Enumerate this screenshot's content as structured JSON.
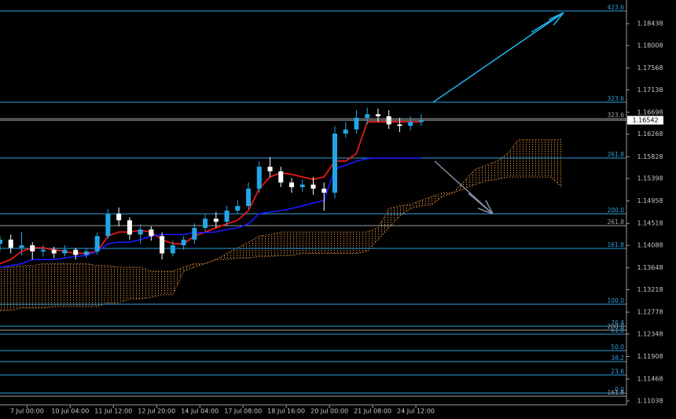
{
  "chart_data": {
    "type": "candlestick",
    "ylim": [
      1.1096,
      1.189
    ],
    "yticks": [
      1.18438,
      1.18008,
      1.17568,
      1.17138,
      1.16698,
      1.16268,
      1.15828,
      1.15398,
      1.14958,
      1.14518,
      1.14088,
      1.13648,
      1.13218,
      1.12778,
      1.12348,
      1.11908,
      1.11468,
      1.11038
    ],
    "xlim": [
      0,
      58
    ],
    "xticks": [
      {
        "value": 2.5,
        "label": "7 Jul 00:00"
      },
      {
        "value": 6.5,
        "label": "10 Jul 04:00"
      },
      {
        "value": 10.5,
        "label": "11 Jul 12:00"
      },
      {
        "value": 14.5,
        "label": "12 Jul 20:00"
      },
      {
        "value": 18.5,
        "label": "14 Jul 04:00"
      },
      {
        "value": 22.5,
        "label": "17 Jul 08:00"
      },
      {
        "value": 26.5,
        "label": "18 Jul 16:00"
      },
      {
        "value": 30.5,
        "label": "20 Jul 00:00"
      },
      {
        "value": 34.5,
        "label": "21 Jul 08:00"
      },
      {
        "value": 38.5,
        "label": "24 Jul 12:00"
      }
    ],
    "up_color": "#22a6e6",
    "down_color": "#ffffff",
    "open": [
      1.1412,
      1.142,
      1.1404,
      1.1409,
      1.1397,
      1.14,
      1.1393,
      1.14,
      1.139,
      1.1397,
      1.1427,
      1.1471,
      1.1458,
      1.143,
      1.144,
      1.1427,
      1.1393,
      1.1409,
      1.142,
      1.1443,
      1.1461,
      1.1455,
      1.1477,
      1.1486,
      1.152,
      1.1563,
      1.1554,
      1.1532,
      1.1523,
      1.1528,
      1.152,
      1.1512,
      1.1628,
      1.1636,
      1.1659,
      1.1666,
      1.1662,
      1.1646,
      1.1643,
      1.1651
    ],
    "high": [
      1.1427,
      1.143,
      1.1435,
      1.1415,
      1.1409,
      1.1406,
      1.1409,
      1.1404,
      1.1403,
      1.1434,
      1.148,
      1.1483,
      1.1464,
      1.1451,
      1.1446,
      1.1434,
      1.1418,
      1.1427,
      1.1452,
      1.1471,
      1.1474,
      1.1486,
      1.1497,
      1.1532,
      1.1574,
      1.1582,
      1.1563,
      1.1541,
      1.1538,
      1.1543,
      1.1532,
      1.1643,
      1.1651,
      1.1674,
      1.1679,
      1.1677,
      1.1674,
      1.1659,
      1.1662,
      1.1666
    ],
    "low": [
      1.1397,
      1.1393,
      1.1389,
      1.1381,
      1.1387,
      1.1384,
      1.1387,
      1.1381,
      1.1384,
      1.139,
      1.1421,
      1.1446,
      1.142,
      1.1412,
      1.1418,
      1.1381,
      1.1387,
      1.14,
      1.1412,
      1.1437,
      1.1443,
      1.1446,
      1.1471,
      1.148,
      1.1512,
      1.1543,
      1.1523,
      1.1512,
      1.1514,
      1.1508,
      1.1477,
      1.1501,
      1.162,
      1.1628,
      1.1646,
      1.1651,
      1.1637,
      1.1631,
      1.1634,
      1.1643
    ],
    "close": [
      1.142,
      1.1404,
      1.1409,
      1.1397,
      1.14,
      1.1393,
      1.14,
      1.139,
      1.1397,
      1.1427,
      1.1471,
      1.1458,
      1.143,
      1.144,
      1.1427,
      1.1393,
      1.1409,
      1.142,
      1.1443,
      1.1461,
      1.1455,
      1.1477,
      1.1486,
      1.152,
      1.1563,
      1.1554,
      1.1532,
      1.1523,
      1.1528,
      1.152,
      1.1512,
      1.1628,
      1.1636,
      1.1659,
      1.1666,
      1.1662,
      1.1646,
      1.1643,
      1.1651,
      1.16542
    ],
    "lines": [
      {
        "color": "#ff1a1a",
        "values": [
          1.1373,
          1.1381,
          1.1397,
          1.1404,
          1.1404,
          1.14,
          1.1397,
          1.1393,
          1.1393,
          1.1397,
          1.1427,
          1.1435,
          1.1435,
          1.1438,
          1.1435,
          1.142,
          1.1412,
          1.1412,
          1.1427,
          1.1435,
          1.1443,
          1.1451,
          1.1458,
          1.1477,
          1.152,
          1.1543,
          1.1551,
          1.1548,
          1.1543,
          1.1538,
          1.1543,
          1.1574,
          1.1574,
          1.1589,
          1.1651,
          1.1651,
          1.1651,
          1.1651,
          1.1651,
          1.1651
        ]
      },
      {
        "color": "#1a1aff",
        "values": [
          1.1366,
          1.1369,
          1.1373,
          1.1381,
          1.1381,
          1.1381,
          1.1384,
          1.1387,
          1.1389,
          1.1397,
          1.1412,
          1.1415,
          1.1415,
          1.142,
          1.1427,
          1.143,
          1.143,
          1.143,
          1.1434,
          1.1434,
          1.1435,
          1.144,
          1.1443,
          1.1451,
          1.1471,
          1.1474,
          1.1477,
          1.1481,
          1.1486,
          1.1492,
          1.1497,
          1.1558,
          1.1566,
          1.1574,
          1.1579,
          1.158,
          1.158,
          1.158,
          1.158,
          1.158
        ]
      }
    ],
    "cloud_color": "#d98a3a",
    "cloud": [
      {
        "values": [
          1.1366,
          1.1366,
          1.1369,
          1.1369,
          1.1373,
          1.1373,
          1.1373,
          1.1373,
          1.1373,
          1.1369,
          1.1369,
          1.1366,
          1.1366,
          1.1366,
          1.1358,
          1.1358,
          1.1358,
          1.1366,
          1.1373,
          1.1373,
          1.1381,
          1.1393,
          1.1404,
          1.1415,
          1.1427,
          1.143,
          1.1435,
          1.1435,
          1.1435,
          1.1435,
          1.1435,
          1.1435,
          1.1435,
          1.1435,
          1.1435,
          1.1443,
          1.1481,
          1.1486,
          1.1489,
          1.1497,
          1.1505,
          1.1512,
          1.1512,
          1.1535,
          1.1558,
          1.1566,
          1.1574,
          1.1589,
          1.1616,
          1.1616,
          1.1616,
          1.1616,
          1.1616
        ]
      },
      {
        "values": [
          1.1281,
          1.1281,
          1.1286,
          1.1286,
          1.1286,
          1.1289,
          1.1289,
          1.1289,
          1.1289,
          1.1289,
          1.1296,
          1.1296,
          1.1304,
          1.1304,
          1.1307,
          1.1312,
          1.1312,
          1.1358,
          1.1366,
          1.1373,
          1.1381,
          1.1381,
          1.1384,
          1.1384,
          1.1387,
          1.1387,
          1.1389,
          1.1389,
          1.1393,
          1.1393,
          1.1393,
          1.1393,
          1.1393,
          1.1393,
          1.1397,
          1.142,
          1.1443,
          1.1466,
          1.1481,
          1.1486,
          1.1489,
          1.1505,
          1.1512,
          1.152,
          1.1528,
          1.1535,
          1.1538,
          1.1543,
          1.1543,
          1.1543,
          1.1543,
          1.1543,
          1.1523
        ]
      }
    ],
    "levels": [
      {
        "value": 1.18684,
        "label": "423.6",
        "color": "#2f9fe0"
      },
      {
        "value": 1.16896,
        "label": "323.6",
        "color": "#2f9fe0"
      },
      {
        "value": 1.16572,
        "label": "323.6",
        "color": "#a0a0a0"
      },
      {
        "value": 1.15801,
        "label": "261.8",
        "color": "#2f9fe0"
      },
      {
        "value": 1.14706,
        "label": "200.0",
        "color": "#2f9fe0"
      },
      {
        "value": 1.14475,
        "label": "261.8",
        "color": "#a0a0a0"
      },
      {
        "value": 1.14028,
        "label": "161.8",
        "color": "#2f9fe0"
      },
      {
        "value": 1.12934,
        "label": "100.0",
        "color": "#2f9fe0"
      },
      {
        "value": 1.12502,
        "label": "76.4",
        "color": "#2f9fe0"
      },
      {
        "value": 1.12425,
        "label": "200.0",
        "color": "#a0a0a0"
      },
      {
        "value": 1.12347,
        "label": "61.8",
        "color": "#2f9fe0"
      },
      {
        "value": 1.12024,
        "label": "50.0",
        "color": "#2f9fe0"
      },
      {
        "value": 1.11808,
        "label": "38.2",
        "color": "#2f9fe0"
      },
      {
        "value": 1.11546,
        "label": "23.6",
        "color": "#2f9fe0"
      },
      {
        "value": 1.11191,
        "label": "0.0",
        "color": "#2f9fe0"
      },
      {
        "value": 1.1113,
        "label": "161.8",
        "color": "#a0a0a0"
      }
    ],
    "last_price": 1.16542
  }
}
